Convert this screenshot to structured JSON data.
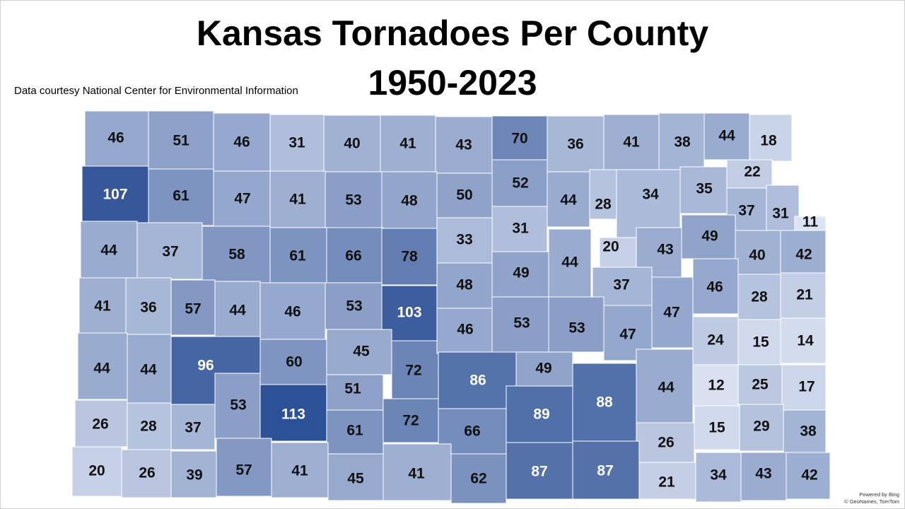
{
  "map": {
    "title_line1": "Kansas Tornadoes Per County",
    "title_line2": "1950-2023",
    "credit": "Data courtesy National Center for Environmental Information",
    "attribution_line1": "Powered by Bing",
    "attribution_line2": "© GeoNames, TomTom",
    "color_scale": {
      "min_color": "#dce3f2",
      "max_color": "#2d5196",
      "min_value": 11,
      "max_value": 113,
      "label_light_color": "#ffffff",
      "label_dark_color": "#111111"
    },
    "counties": [
      {
        "value": 46
      },
      {
        "value": 51
      },
      {
        "value": 46
      },
      {
        "value": 31
      },
      {
        "value": 40
      },
      {
        "value": 41
      },
      {
        "value": 43
      },
      {
        "value": 70
      },
      {
        "value": 36
      },
      {
        "value": 41
      },
      {
        "value": 38
      },
      {
        "value": 44
      },
      {
        "value": 18
      },
      {
        "value": 107
      },
      {
        "value": 61
      },
      {
        "value": 47
      },
      {
        "value": 41
      },
      {
        "value": 53
      },
      {
        "value": 48
      },
      {
        "value": 50
      },
      {
        "value": 52
      },
      {
        "value": 44
      },
      {
        "value": 28
      },
      {
        "value": 34
      },
      {
        "value": 35
      },
      {
        "value": 22
      },
      {
        "value": 37
      },
      {
        "value": 31
      },
      {
        "value": 11
      },
      {
        "value": 44
      },
      {
        "value": 37
      },
      {
        "value": 58
      },
      {
        "value": 61
      },
      {
        "value": 66
      },
      {
        "value": 78
      },
      {
        "value": 33
      },
      {
        "value": 31
      },
      {
        "value": 20
      },
      {
        "value": 43
      },
      {
        "value": 49
      },
      {
        "value": 40
      },
      {
        "value": 42
      },
      {
        "value": 41
      },
      {
        "value": 36
      },
      {
        "value": 57
      },
      {
        "value": 44
      },
      {
        "value": 46
      },
      {
        "value": 53
      },
      {
        "value": 103
      },
      {
        "value": 48
      },
      {
        "value": 49
      },
      {
        "value": 44
      },
      {
        "value": 37
      },
      {
        "value": 47
      },
      {
        "value": 46
      },
      {
        "value": 28
      },
      {
        "value": 21
      },
      {
        "value": 44
      },
      {
        "value": 44
      },
      {
        "value": 96
      },
      {
        "value": 60
      },
      {
        "value": 45
      },
      {
        "value": 72
      },
      {
        "value": 46
      },
      {
        "value": 53
      },
      {
        "value": 53
      },
      {
        "value": 47
      },
      {
        "value": 24
      },
      {
        "value": 15
      },
      {
        "value": 14
      },
      {
        "value": 53
      },
      {
        "value": 113
      },
      {
        "value": 51
      },
      {
        "value": 86
      },
      {
        "value": 49
      },
      {
        "value": 88
      },
      {
        "value": 44
      },
      {
        "value": 12
      },
      {
        "value": 25
      },
      {
        "value": 17
      },
      {
        "value": 26
      },
      {
        "value": 28
      },
      {
        "value": 37
      },
      {
        "value": 61
      },
      {
        "value": 72
      },
      {
        "value": 66
      },
      {
        "value": 89
      },
      {
        "value": 26
      },
      {
        "value": 15
      },
      {
        "value": 29
      },
      {
        "value": 38
      },
      {
        "value": 20
      },
      {
        "value": 26
      },
      {
        "value": 39
      },
      {
        "value": 57
      },
      {
        "value": 41
      },
      {
        "value": 45
      },
      {
        "value": 41
      },
      {
        "value": 62
      },
      {
        "value": 87
      },
      {
        "value": 87
      },
      {
        "value": 21
      },
      {
        "value": 34
      },
      {
        "value": 43
      },
      {
        "value": 42
      }
    ]
  }
}
